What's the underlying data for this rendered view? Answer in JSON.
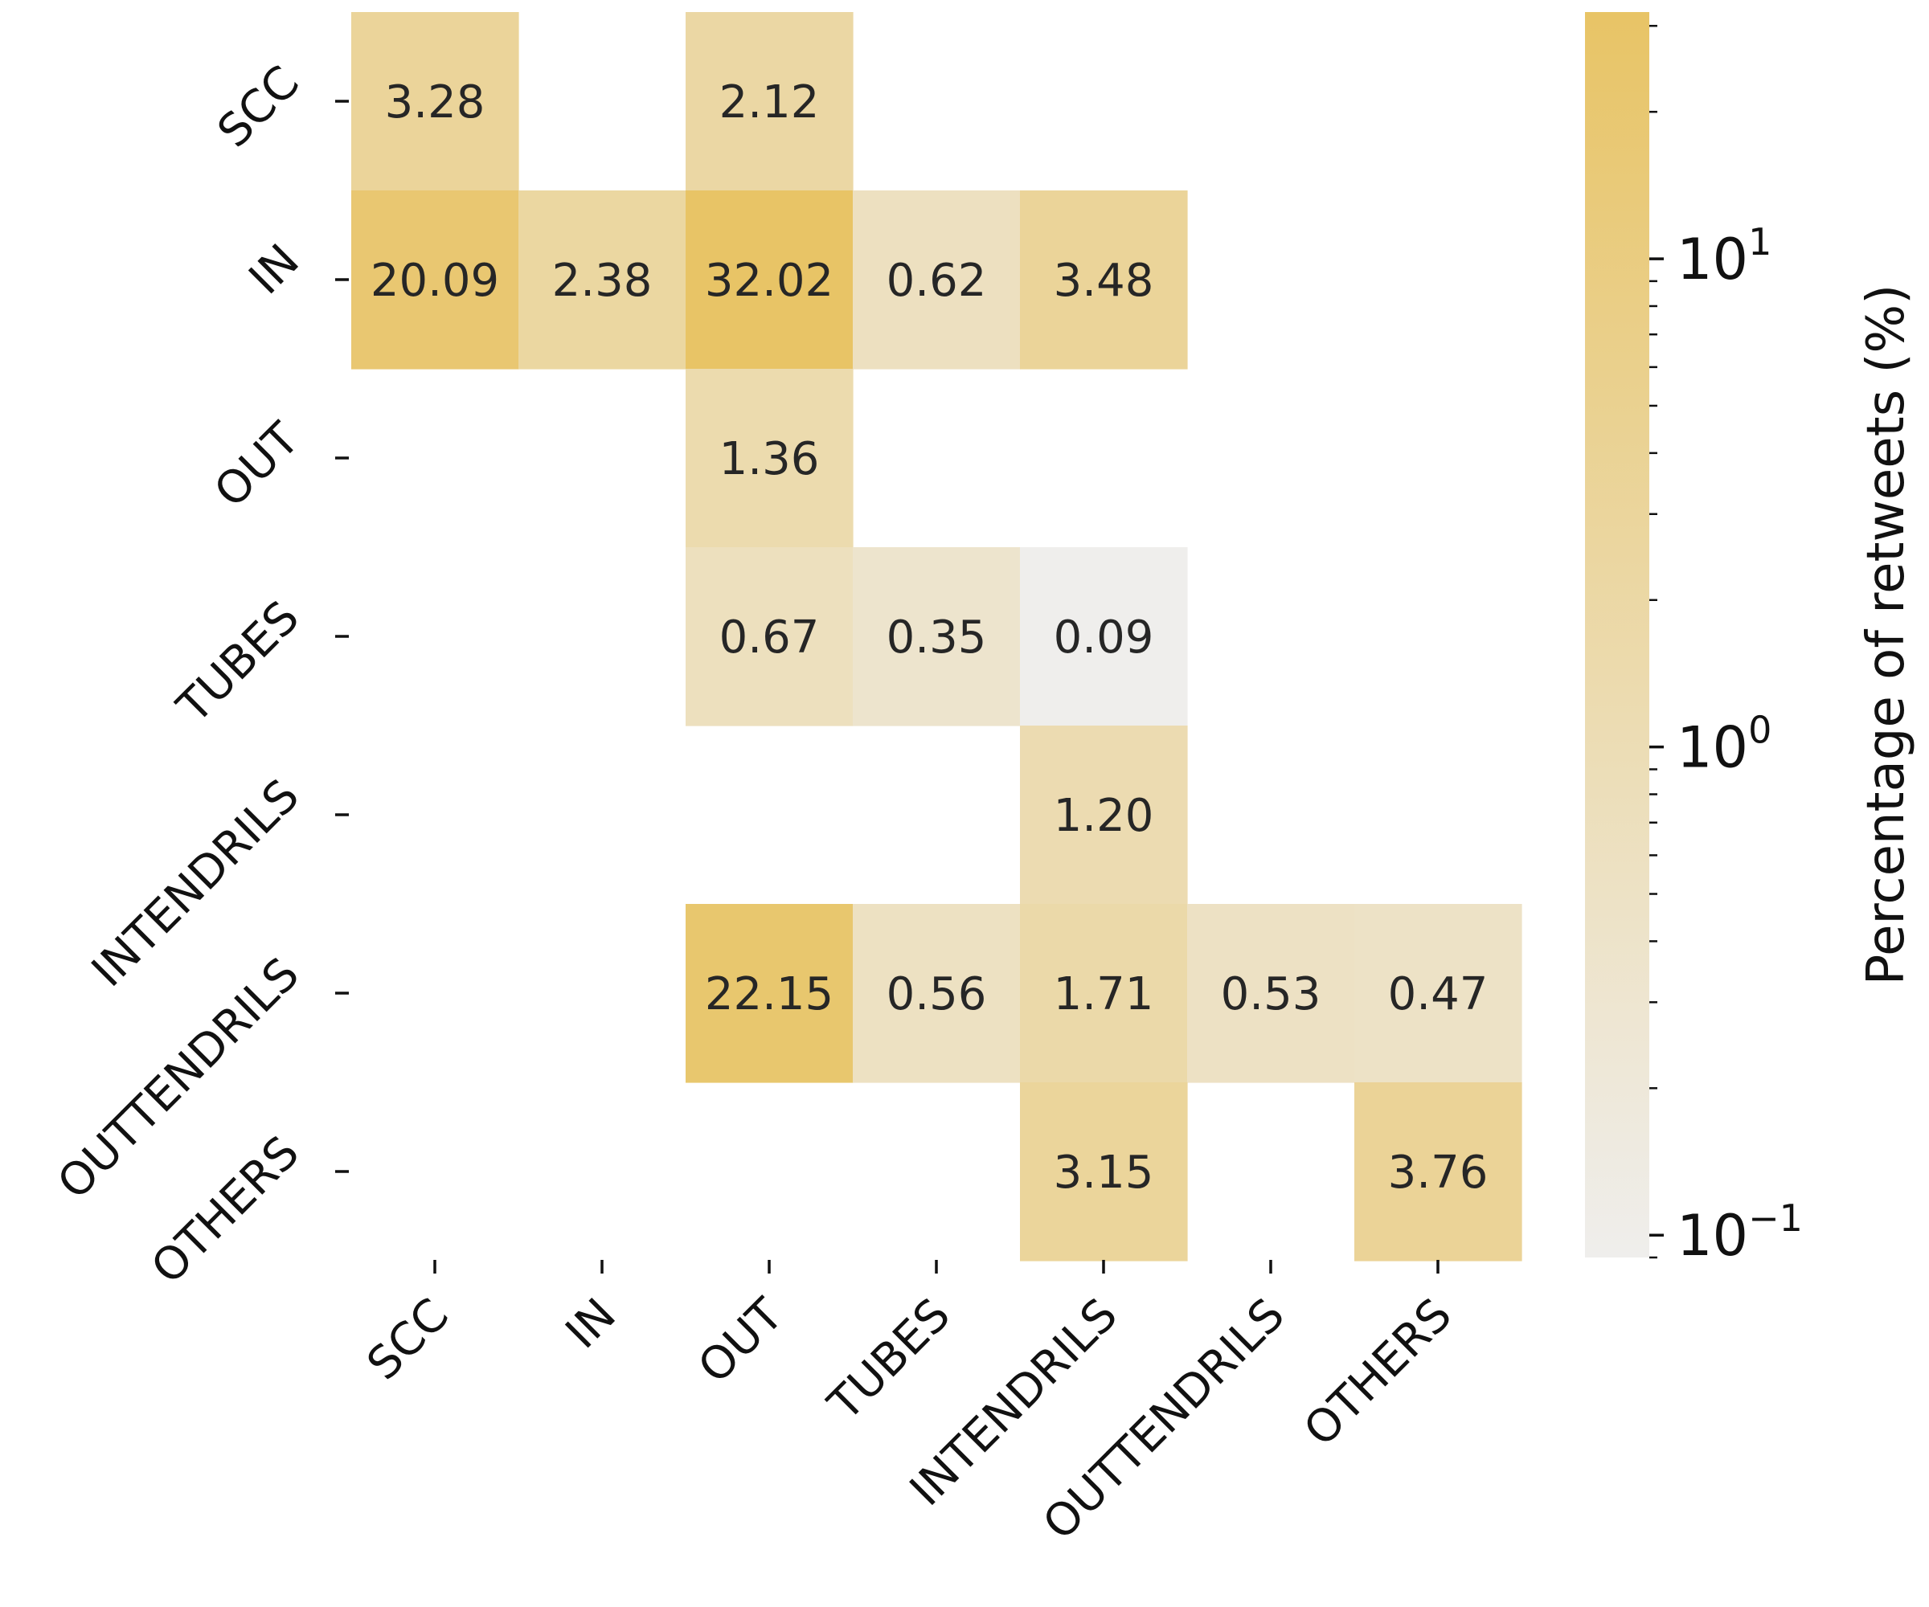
{
  "chart_data": {
    "type": "heatmap",
    "rows": [
      "SCC",
      "IN",
      "OUT",
      "TUBES",
      "INTENDRILS",
      "OUTTENDRILS",
      "OTHERS"
    ],
    "columns": [
      "SCC",
      "IN",
      "OUT",
      "TUBES",
      "INTENDRILS",
      "OUTTENDRILS",
      "OTHERS"
    ],
    "values": [
      [
        3.28,
        null,
        2.12,
        null,
        null,
        null,
        null
      ],
      [
        20.09,
        2.38,
        32.02,
        0.62,
        3.48,
        null,
        null
      ],
      [
        null,
        null,
        1.36,
        null,
        null,
        null,
        null
      ],
      [
        null,
        null,
        0.67,
        0.35,
        0.09,
        null,
        null
      ],
      [
        null,
        null,
        null,
        null,
        1.2,
        null,
        null
      ],
      [
        null,
        null,
        22.15,
        0.56,
        1.71,
        0.53,
        0.47
      ],
      [
        null,
        null,
        null,
        null,
        3.15,
        null,
        3.76
      ]
    ],
    "cell_labels": [
      [
        "3.28",
        "",
        "2.12",
        "",
        "",
        "",
        ""
      ],
      [
        "20.09",
        "2.38",
        "32.02",
        "0.62",
        "3.48",
        "",
        ""
      ],
      [
        "",
        "",
        "1.36",
        "",
        "",
        "",
        ""
      ],
      [
        "",
        "",
        "0.67",
        "0.35",
        "0.09",
        "",
        ""
      ],
      [
        "",
        "",
        "",
        "",
        "1.20",
        "",
        ""
      ],
      [
        "",
        "",
        "22.15",
        "0.56",
        "1.71",
        "0.53",
        "0.47"
      ],
      [
        "",
        "",
        "",
        "",
        "3.15",
        "",
        "3.76"
      ]
    ],
    "colorbar": {
      "label": "Percentage of retweets (%)",
      "scale": "log",
      "range": [
        0.09,
        32.02
      ],
      "ticks": [
        {
          "value": 0.1,
          "base": "10",
          "exp": "−1"
        },
        {
          "value": 1,
          "base": "10",
          "exp": "0"
        },
        {
          "value": 10,
          "base": "10",
          "exp": "1"
        }
      ],
      "color_low": "#efeeec",
      "color_high": "#e8c466"
    },
    "grid": false,
    "legend": "colorbar-right"
  }
}
